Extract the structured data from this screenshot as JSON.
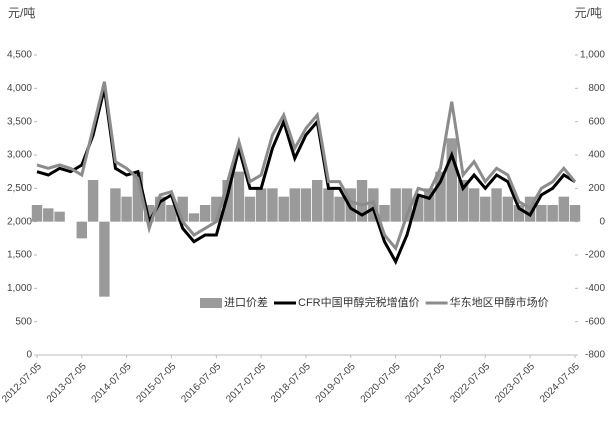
{
  "chart_data": {
    "type": "combo",
    "y_unit_left": "元/吨",
    "y_unit_right": "元/吨",
    "x": [
      "2012-07-05",
      "2012-10-05",
      "2013-01-05",
      "2013-04-05",
      "2013-07-05",
      "2013-10-05",
      "2014-01-05",
      "2014-04-05",
      "2014-07-05",
      "2014-10-05",
      "2015-01-05",
      "2015-04-05",
      "2015-07-05",
      "2015-10-05",
      "2016-01-05",
      "2016-04-05",
      "2016-07-05",
      "2016-10-05",
      "2017-01-05",
      "2017-04-05",
      "2017-07-05",
      "2017-10-05",
      "2018-01-05",
      "2018-04-05",
      "2018-07-05",
      "2018-10-05",
      "2019-01-05",
      "2019-04-05",
      "2019-07-05",
      "2019-10-05",
      "2020-01-05",
      "2020-04-05",
      "2020-07-05",
      "2020-10-05",
      "2021-01-05",
      "2021-04-05",
      "2021-07-05",
      "2021-10-05",
      "2022-01-05",
      "2022-04-05",
      "2022-07-05",
      "2022-10-05",
      "2023-01-05",
      "2023-04-05",
      "2023-07-05",
      "2023-10-05",
      "2024-01-05",
      "2024-04-05",
      "2024-07-05"
    ],
    "xlim": [
      "2012-07-05",
      "2024-07-05"
    ],
    "xticks": [
      "2012-07-05",
      "2013-07-05",
      "2014-07-05",
      "2015-07-05",
      "2016-07-05",
      "2017-07-05",
      "2018-07-05",
      "2019-07-05",
      "2020-07-05",
      "2021-07-05",
      "2022-07-05",
      "2023-07-05",
      "2024-07-05"
    ],
    "ylim": [
      0,
      4500
    ],
    "yticks": [
      0,
      500,
      {
        "value": 1000,
        "label": "1,000"
      },
      {
        "value": 1500,
        "label": "1,500"
      },
      {
        "value": 2000,
        "label": "2,000"
      },
      {
        "value": 2500,
        "label": "2,500"
      },
      {
        "value": 3000,
        "label": "3,000"
      },
      {
        "value": 3500,
        "label": "3,500"
      },
      {
        "value": 4000,
        "label": "4,000"
      },
      {
        "value": 4500,
        "label": "4,500"
      }
    ],
    "y2lim": [
      -800,
      1000
    ],
    "y2ticks": [
      -800,
      -600,
      -400,
      -200,
      0,
      200,
      400,
      600,
      800,
      {
        "value": 1000,
        "label": "1,000"
      }
    ],
    "series": [
      {
        "name": "进口价差",
        "type": "bar",
        "axis": "y2",
        "color": "#9a9a9a",
        "values": [
          100,
          80,
          60,
          0,
          -100,
          250,
          -450,
          200,
          150,
          300,
          100,
          150,
          100,
          150,
          50,
          100,
          150,
          250,
          300,
          150,
          200,
          200,
          150,
          200,
          200,
          250,
          200,
          150,
          200,
          250,
          200,
          100,
          200,
          200,
          150,
          200,
          300,
          500,
          250,
          200,
          150,
          200,
          150,
          100,
          150,
          100,
          100,
          150,
          100
        ]
      },
      {
        "name": "CFR中国甲醇完税增值价",
        "type": "line",
        "axis": "y",
        "color": "#000000",
        "values": [
          2750,
          2700,
          2800,
          2750,
          2850,
          3300,
          4000,
          2800,
          2700,
          2750,
          2000,
          2300,
          2400,
          1900,
          1700,
          1800,
          1800,
          2400,
          3100,
          2500,
          2500,
          3100,
          3500,
          2950,
          3300,
          3500,
          2500,
          2500,
          2200,
          2100,
          2200,
          1700,
          1400,
          1800,
          2400,
          2350,
          2600,
          3000,
          2500,
          2700,
          2500,
          2700,
          2600,
          2200,
          2100,
          2400,
          2500,
          2700,
          2600
        ]
      },
      {
        "name": "华东地区甲醇市场价",
        "type": "line",
        "axis": "y",
        "color": "#8c8c8c",
        "values": [
          2850,
          2800,
          2850,
          2800,
          2700,
          3400,
          4100,
          2900,
          2800,
          2650,
          1900,
          2400,
          2450,
          2000,
          1800,
          1900,
          2000,
          2600,
          3200,
          2600,
          2700,
          3300,
          3600,
          3100,
          3400,
          3600,
          2600,
          2600,
          2300,
          2250,
          2300,
          1800,
          1600,
          2100,
          2500,
          2450,
          2800,
          3800,
          2700,
          2900,
          2600,
          2800,
          2700,
          2300,
          2200,
          2500,
          2600,
          2800,
          2600
        ]
      }
    ]
  }
}
